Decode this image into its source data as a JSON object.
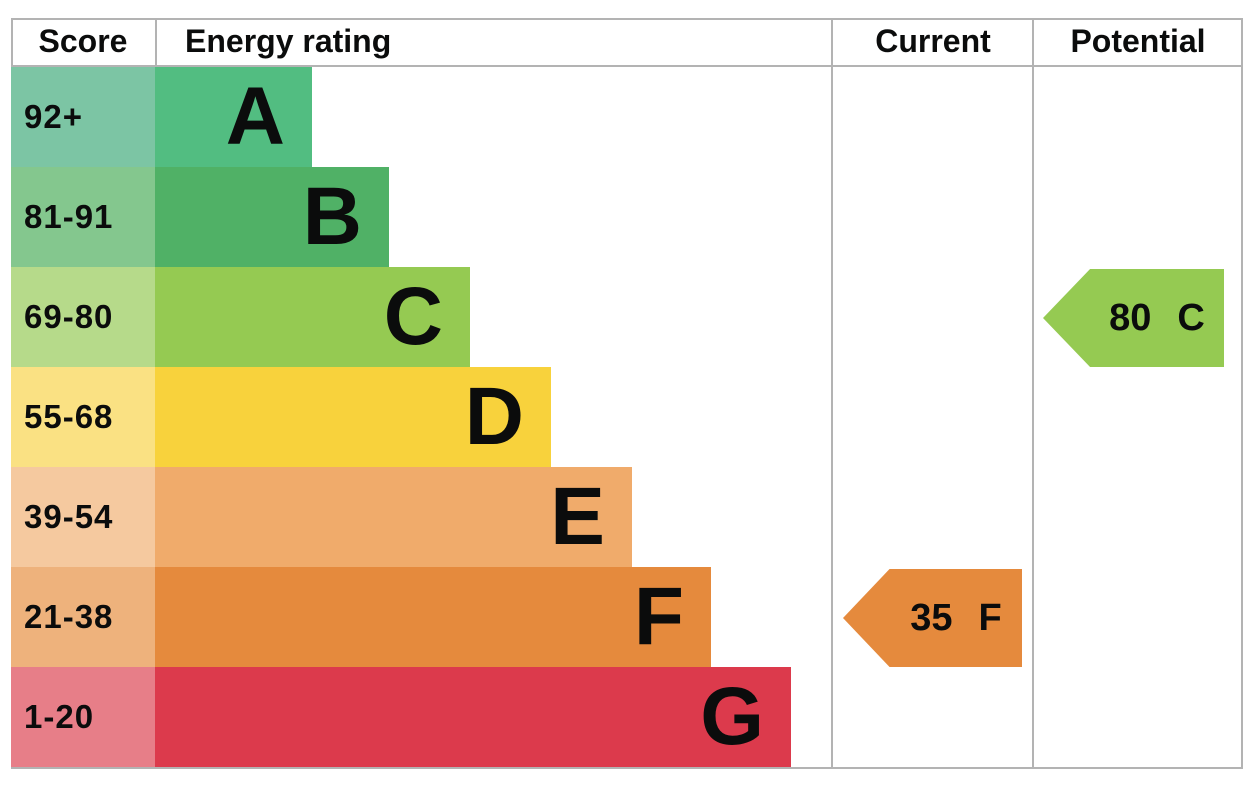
{
  "header": {
    "score": "Score",
    "energy_rating": "Energy rating",
    "current": "Current",
    "potential": "Potential"
  },
  "chart_data": {
    "type": "bar",
    "orientation": "horizontal",
    "description": "EPC energy efficiency rating chart with bands A-G; bar length increases from A to G",
    "bands": [
      {
        "letter": "A",
        "score": "92+",
        "color": "#52bd81",
        "score_color": "#7cc5a4"
      },
      {
        "letter": "B",
        "score": "81-91",
        "color": "#50b166",
        "score_color": "#84c78e"
      },
      {
        "letter": "C",
        "score": "69-80",
        "color": "#95ca52",
        "score_color": "#b6da8a"
      },
      {
        "letter": "D",
        "score": "55-68",
        "color": "#f8d23c",
        "score_color": "#fae183"
      },
      {
        "letter": "E",
        "score": "39-54",
        "color": "#f0ab6b",
        "score_color": "#f5c99f"
      },
      {
        "letter": "F",
        "score": "21-38",
        "color": "#e58a3d",
        "score_color": "#eeb27c"
      },
      {
        "letter": "G",
        "score": "1-20",
        "color": "#dc3a4c",
        "score_color": "#e77e88"
      }
    ],
    "current": {
      "value": "35",
      "band": "F",
      "color": "#e58a3d"
    },
    "potential": {
      "value": "80",
      "band": "C",
      "color": "#95ca52"
    }
  },
  "colors": {
    "border": "#b3b3b3",
    "text": "#0b0c0c",
    "background": "#ffffff"
  }
}
